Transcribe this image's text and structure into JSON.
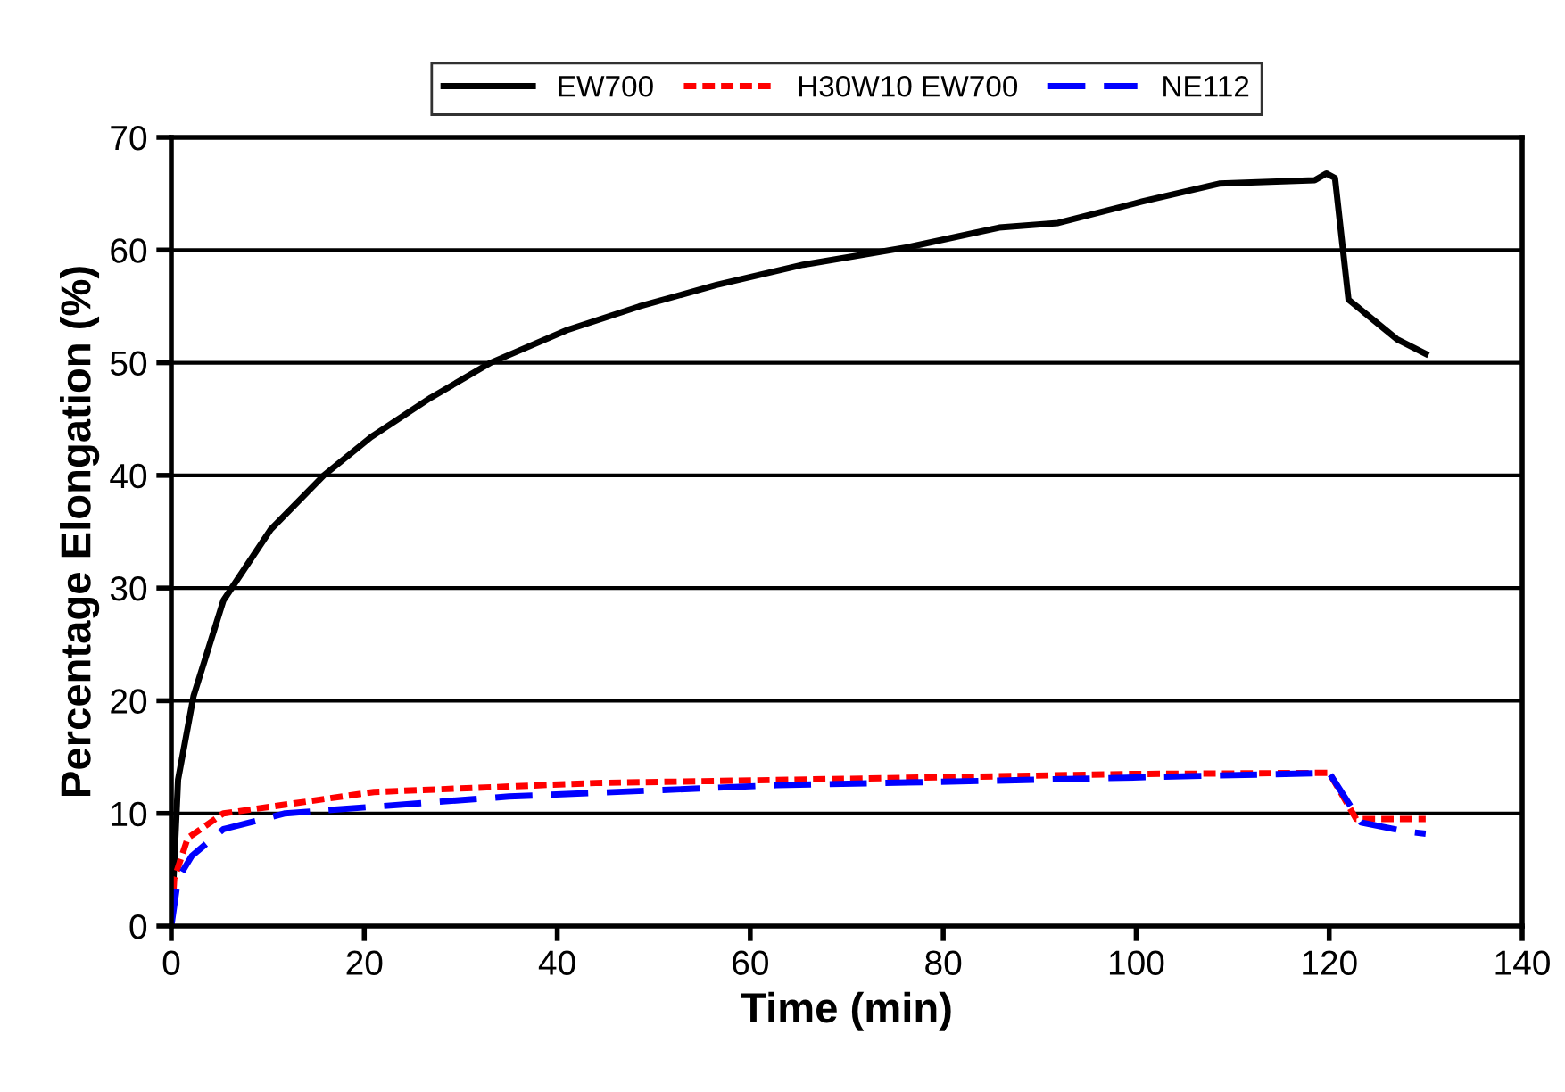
{
  "chart_data": {
    "type": "line",
    "xlabel": "Time (min)",
    "ylabel": "Percentage Elongation (%)",
    "xlim": [
      0,
      140
    ],
    "xticks": [
      0,
      20,
      40,
      60,
      80,
      100,
      120,
      140
    ],
    "ylim": [
      0,
      70
    ],
    "yticks": [
      0,
      10,
      20,
      30,
      40,
      50,
      60,
      70
    ],
    "grid": "y",
    "legend": "top",
    "marker": "none",
    "series": [
      {
        "name": "EW700",
        "color": "#000000",
        "line_style": "solid",
        "x": [
          0,
          0.7,
          2.3,
          5.4,
          10.3,
          15.8,
          20.7,
          26.9,
          33.1,
          41,
          48.5,
          56.5,
          65.5,
          76.6,
          85.8,
          91.9,
          100.6,
          108.6,
          118.5,
          119.7,
          120.6,
          122,
          124,
          127,
          130
        ],
        "values": [
          0,
          13,
          20.4,
          28.9,
          35.2,
          40,
          43.4,
          46.9,
          50,
          52.9,
          55,
          56.9,
          58.7,
          60.3,
          62,
          62.4,
          64.3,
          65.9,
          66.2,
          66.8,
          66.4,
          55.6,
          54.2,
          52.1,
          50.8
        ]
      },
      {
        "name": "H30W10 EW700",
        "color": "#ff0000",
        "line_style": "dotted",
        "x": [
          0,
          0.3,
          1.7,
          5.4,
          21,
          44,
          72,
          99.7,
          120,
          122.8,
          130
        ],
        "values": [
          0,
          4.2,
          7.8,
          10,
          11.9,
          12.7,
          13.1,
          13.5,
          13.6,
          9.5,
          9.5
        ]
      },
      {
        "name": "NE112",
        "color": "#0000ff",
        "line_style": "dashed",
        "x": [
          0,
          0.7,
          2.1,
          5.4,
          11.8,
          35,
          62.7,
          90.4,
          120,
          123.3,
          127.9,
          130
        ],
        "values": [
          0,
          4.2,
          6.2,
          8.6,
          10,
          11.5,
          12.5,
          13,
          13.6,
          9.2,
          8.4,
          8.2
        ]
      }
    ]
  }
}
